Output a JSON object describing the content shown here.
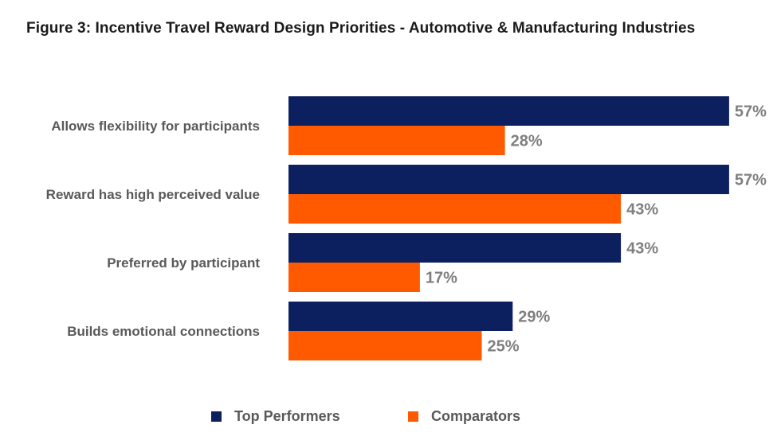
{
  "chart_data": {
    "type": "bar",
    "orientation": "horizontal",
    "title": "Figure 3: Incentive Travel Reward Design Priorities - Automotive & Manufacturing Industries",
    "xlabel": "",
    "ylabel": "",
    "xlim": [
      0,
      57
    ],
    "grid": false,
    "legend_position": "bottom",
    "categories": [
      "Allows flexibility for participants",
      "Reward has high perceived value",
      "Preferred by participant",
      "Builds emotional connections"
    ],
    "series": [
      {
        "name": "Top Performers",
        "color": "#0c1f5e",
        "values": [
          57,
          57,
          43,
          29
        ],
        "labels": [
          "57%",
          "57%",
          "43%",
          "29%"
        ]
      },
      {
        "name": "Comparators",
        "color": "#ff5a00",
        "values": [
          28,
          43,
          17,
          25
        ],
        "labels": [
          "28%",
          "43%",
          "17%",
          "25%"
        ]
      }
    ]
  }
}
